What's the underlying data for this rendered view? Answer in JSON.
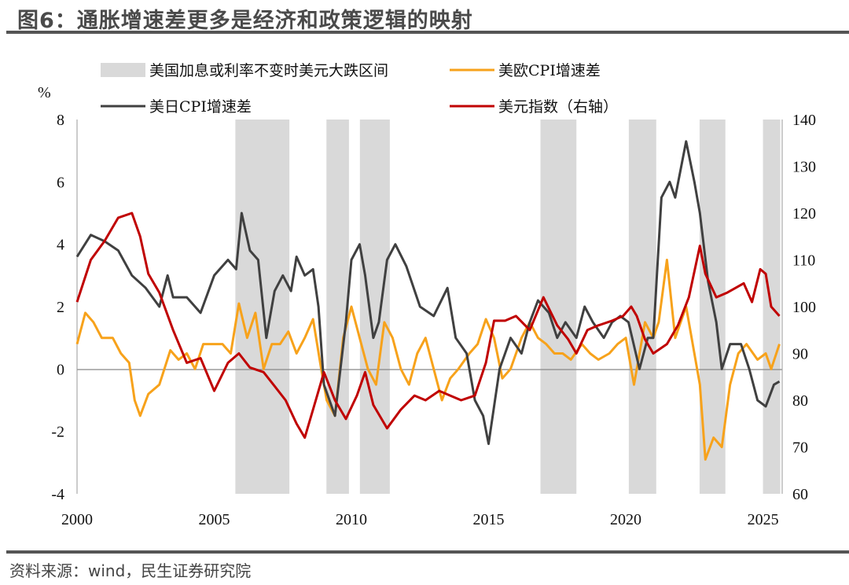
{
  "title": "图6：通胀增速差更多是经济和政策逻辑的映射",
  "source": "资料来源：wind，民生证券研究院",
  "chart_data": {
    "type": "line",
    "title": "图6：通胀增速差更多是经济和政策逻辑的映射",
    "left_axis": {
      "unit": "%",
      "ylim": [
        -4,
        8
      ],
      "ticks": [
        -4,
        -2,
        0,
        2,
        4,
        6,
        8
      ]
    },
    "right_axis": {
      "ylim": [
        60,
        140
      ],
      "ticks": [
        60,
        70,
        80,
        90,
        100,
        110,
        120,
        130,
        140
      ]
    },
    "x_axis": {
      "xlim": [
        2000,
        2025.7
      ],
      "ticks": [
        2000,
        2005,
        2010,
        2015,
        2020,
        2025
      ]
    },
    "grid": false,
    "legend": "top",
    "shaded_regions": {
      "name": "美国加息或利率不变时美元大跌区间",
      "color": "#d9d9d9",
      "ranges": [
        [
          2005.77,
          2007.74
        ],
        [
          2009.09,
          2009.91
        ],
        [
          2010.31,
          2011.4
        ],
        [
          2016.89,
          2018.2
        ],
        [
          2020.11,
          2021.11
        ],
        [
          2022.69,
          2023.63
        ],
        [
          2025.0,
          2025.63
        ]
      ]
    },
    "series": [
      {
        "name": "美欧CPI增速差",
        "axis": "left",
        "color": "#f7a21b",
        "points": [
          [
            2000,
            0.8
          ],
          [
            2000.3,
            1.8
          ],
          [
            2000.6,
            1.5
          ],
          [
            2000.9,
            1.0
          ],
          [
            2001.3,
            1.0
          ],
          [
            2001.6,
            0.5
          ],
          [
            2001.9,
            0.2
          ],
          [
            2002.1,
            -1.0
          ],
          [
            2002.3,
            -1.5
          ],
          [
            2002.6,
            -0.8
          ],
          [
            2003,
            -0.5
          ],
          [
            2003.4,
            0.6
          ],
          [
            2003.7,
            0.3
          ],
          [
            2004,
            0.5
          ],
          [
            2004.3,
            0.0
          ],
          [
            2004.6,
            0.8
          ],
          [
            2004.9,
            0.8
          ],
          [
            2005.3,
            0.8
          ],
          [
            2005.6,
            0.5
          ],
          [
            2005.9,
            2.1
          ],
          [
            2006.2,
            1.0
          ],
          [
            2006.5,
            1.8
          ],
          [
            2006.8,
            0.0
          ],
          [
            2007.1,
            0.8
          ],
          [
            2007.4,
            0.8
          ],
          [
            2007.7,
            1.2
          ],
          [
            2008.0,
            0.5
          ],
          [
            2008.3,
            1.0
          ],
          [
            2008.6,
            1.6
          ],
          [
            2008.9,
            0.0
          ],
          [
            2009.1,
            -1.0
          ],
          [
            2009.4,
            -1.5
          ],
          [
            2009.7,
            1.0
          ],
          [
            2010.0,
            2.0
          ],
          [
            2010.3,
            1.0
          ],
          [
            2010.6,
            0.0
          ],
          [
            2010.9,
            -0.5
          ],
          [
            2011.2,
            1.5
          ],
          [
            2011.5,
            1.0
          ],
          [
            2011.8,
            0.0
          ],
          [
            2012.1,
            -0.5
          ],
          [
            2012.4,
            0.5
          ],
          [
            2012.7,
            1.0
          ],
          [
            2013.0,
            0.0
          ],
          [
            2013.3,
            -1.0
          ],
          [
            2013.6,
            -0.3
          ],
          [
            2013.9,
            0.0
          ],
          [
            2014.3,
            0.5
          ],
          [
            2014.6,
            0.8
          ],
          [
            2014.9,
            1.6
          ],
          [
            2015.2,
            1.0
          ],
          [
            2015.5,
            -0.3
          ],
          [
            2015.8,
            0.0
          ],
          [
            2016.2,
            1.0
          ],
          [
            2016.5,
            1.5
          ],
          [
            2016.8,
            1.0
          ],
          [
            2017.1,
            0.8
          ],
          [
            2017.4,
            0.5
          ],
          [
            2017.7,
            0.5
          ],
          [
            2018.0,
            0.3
          ],
          [
            2018.4,
            0.8
          ],
          [
            2018.7,
            0.5
          ],
          [
            2019.0,
            0.3
          ],
          [
            2019.4,
            0.5
          ],
          [
            2019.7,
            0.8
          ],
          [
            2020.0,
            1.0
          ],
          [
            2020.3,
            -0.5
          ],
          [
            2020.7,
            1.5
          ],
          [
            2021.0,
            1.0
          ],
          [
            2021.2,
            1.5
          ],
          [
            2021.5,
            3.5
          ],
          [
            2021.8,
            1.0
          ],
          [
            2022.2,
            2.0
          ],
          [
            2022.4,
            1.0
          ],
          [
            2022.7,
            -0.5
          ],
          [
            2022.9,
            -2.9
          ],
          [
            2023.2,
            -2.2
          ],
          [
            2023.5,
            -2.5
          ],
          [
            2023.8,
            -0.5
          ],
          [
            2024.1,
            0.5
          ],
          [
            2024.4,
            0.8
          ],
          [
            2024.8,
            0.3
          ],
          [
            2025.1,
            0.5
          ],
          [
            2025.3,
            0.0
          ],
          [
            2025.6,
            0.8
          ]
        ]
      },
      {
        "name": "美日CPI增速差",
        "axis": "left",
        "color": "#404040",
        "points": [
          [
            2000,
            3.6
          ],
          [
            2000.5,
            4.3
          ],
          [
            2001,
            4.1
          ],
          [
            2001.5,
            3.8
          ],
          [
            2002,
            3.0
          ],
          [
            2002.5,
            2.6
          ],
          [
            2003,
            2.0
          ],
          [
            2003.3,
            3.0
          ],
          [
            2003.5,
            2.3
          ],
          [
            2004,
            2.3
          ],
          [
            2004.5,
            1.8
          ],
          [
            2005,
            3.0
          ],
          [
            2005.5,
            3.5
          ],
          [
            2005.8,
            3.2
          ],
          [
            2006.0,
            5.0
          ],
          [
            2006.3,
            3.8
          ],
          [
            2006.6,
            3.5
          ],
          [
            2006.9,
            1.0
          ],
          [
            2007.2,
            2.5
          ],
          [
            2007.5,
            3.0
          ],
          [
            2007.8,
            2.5
          ],
          [
            2008.0,
            3.6
          ],
          [
            2008.3,
            3.0
          ],
          [
            2008.6,
            3.2
          ],
          [
            2008.8,
            2.0
          ],
          [
            2009.0,
            -0.5
          ],
          [
            2009.4,
            -1.5
          ],
          [
            2009.8,
            1.5
          ],
          [
            2010,
            3.5
          ],
          [
            2010.3,
            4.0
          ],
          [
            2010.5,
            3.0
          ],
          [
            2010.8,
            1.0
          ],
          [
            2011.0,
            1.5
          ],
          [
            2011.3,
            3.5
          ],
          [
            2011.6,
            4.0
          ],
          [
            2012,
            3.3
          ],
          [
            2012.5,
            2.0
          ],
          [
            2013,
            1.7
          ],
          [
            2013.5,
            2.6
          ],
          [
            2013.8,
            1.0
          ],
          [
            2014.2,
            0.5
          ],
          [
            2014.5,
            -1.0
          ],
          [
            2014.8,
            -1.5
          ],
          [
            2015.0,
            -2.4
          ],
          [
            2015.4,
            0.0
          ],
          [
            2015.8,
            1.0
          ],
          [
            2016.2,
            0.5
          ],
          [
            2016.5,
            1.5
          ],
          [
            2016.8,
            2.2
          ],
          [
            2017.2,
            1.8
          ],
          [
            2017.5,
            1.0
          ],
          [
            2017.8,
            1.5
          ],
          [
            2018.2,
            1.0
          ],
          [
            2018.5,
            2.0
          ],
          [
            2018.8,
            1.5
          ],
          [
            2019.2,
            1.0
          ],
          [
            2019.5,
            1.5
          ],
          [
            2019.8,
            1.7
          ],
          [
            2020.1,
            1.5
          ],
          [
            2020.5,
            0.0
          ],
          [
            2020.8,
            1.0
          ],
          [
            2021.0,
            1.0
          ],
          [
            2021.3,
            5.5
          ],
          [
            2021.6,
            6.0
          ],
          [
            2021.8,
            5.5
          ],
          [
            2022.2,
            7.3
          ],
          [
            2022.5,
            6.0
          ],
          [
            2022.7,
            5.0
          ],
          [
            2023.0,
            2.8
          ],
          [
            2023.3,
            1.5
          ],
          [
            2023.5,
            0.0
          ],
          [
            2023.8,
            0.8
          ],
          [
            2024.2,
            0.8
          ],
          [
            2024.5,
            0.0
          ],
          [
            2024.8,
            -1.0
          ],
          [
            2025.1,
            -1.2
          ],
          [
            2025.4,
            -0.5
          ],
          [
            2025.6,
            -0.4
          ]
        ]
      },
      {
        "name": "美元指数（右轴）",
        "axis": "right",
        "color": "#c00000",
        "points": [
          [
            2000,
            101
          ],
          [
            2000.5,
            110
          ],
          [
            2001,
            114
          ],
          [
            2001.5,
            119
          ],
          [
            2002.0,
            120
          ],
          [
            2002.3,
            115
          ],
          [
            2002.6,
            107
          ],
          [
            2003.0,
            103
          ],
          [
            2003.5,
            95
          ],
          [
            2004.0,
            88
          ],
          [
            2004.5,
            89
          ],
          [
            2005.0,
            82
          ],
          [
            2005.5,
            88
          ],
          [
            2005.9,
            90
          ],
          [
            2006.3,
            87
          ],
          [
            2006.8,
            86
          ],
          [
            2007.2,
            83
          ],
          [
            2007.6,
            80
          ],
          [
            2008.0,
            75
          ],
          [
            2008.3,
            72
          ],
          [
            2008.7,
            80
          ],
          [
            2009.0,
            86
          ],
          [
            2009.4,
            80
          ],
          [
            2009.8,
            76
          ],
          [
            2010.2,
            81
          ],
          [
            2010.5,
            86
          ],
          [
            2010.8,
            79
          ],
          [
            2011.3,
            74
          ],
          [
            2011.8,
            78
          ],
          [
            2012.3,
            81
          ],
          [
            2012.7,
            80
          ],
          [
            2013.2,
            82
          ],
          [
            2013.6,
            81
          ],
          [
            2014.0,
            80
          ],
          [
            2014.5,
            81
          ],
          [
            2014.9,
            88
          ],
          [
            2015.2,
            97
          ],
          [
            2015.6,
            97
          ],
          [
            2016.0,
            98
          ],
          [
            2016.5,
            95
          ],
          [
            2017.0,
            102
          ],
          [
            2017.5,
            96
          ],
          [
            2017.9,
            93
          ],
          [
            2018.2,
            90
          ],
          [
            2018.6,
            95
          ],
          [
            2019.0,
            96
          ],
          [
            2019.5,
            97
          ],
          [
            2019.9,
            98
          ],
          [
            2020.2,
            100
          ],
          [
            2020.4,
            98
          ],
          [
            2020.7,
            93
          ],
          [
            2021.0,
            90
          ],
          [
            2021.5,
            92
          ],
          [
            2021.9,
            96
          ],
          [
            2022.3,
            102
          ],
          [
            2022.7,
            113
          ],
          [
            2022.9,
            107
          ],
          [
            2023.3,
            102
          ],
          [
            2023.7,
            103
          ],
          [
            2024.0,
            104
          ],
          [
            2024.3,
            105
          ],
          [
            2024.6,
            101
          ],
          [
            2024.9,
            108
          ],
          [
            2025.1,
            107
          ],
          [
            2025.3,
            100
          ],
          [
            2025.6,
            98
          ]
        ]
      }
    ]
  }
}
